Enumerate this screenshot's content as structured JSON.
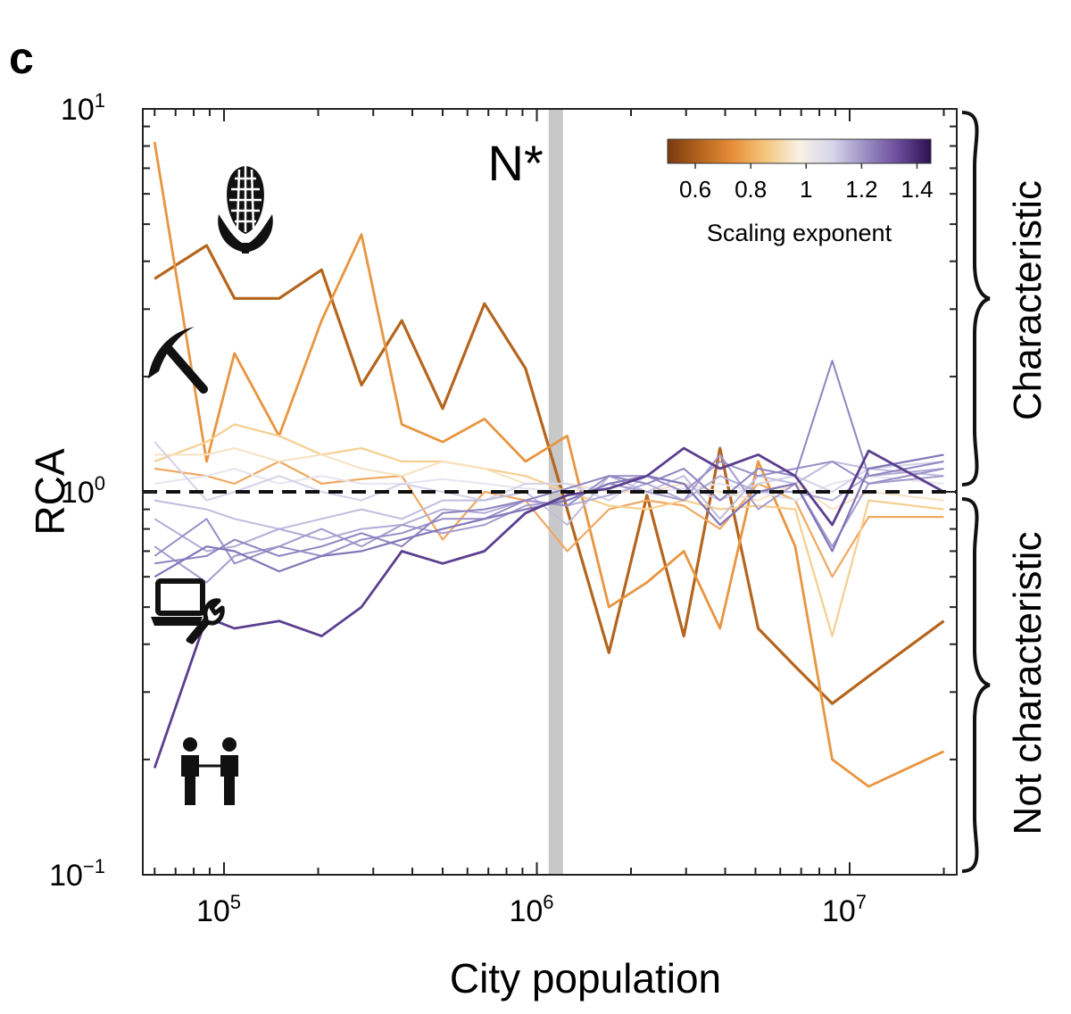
{
  "panel_label": "c",
  "chart_data": {
    "type": "line",
    "xlabel": "City population",
    "ylabel": "RCA",
    "xscale": "log",
    "yscale": "log",
    "xlim": [
      55000,
      22000000
    ],
    "ylim": [
      0.1,
      10
    ],
    "x_ticks": [
      {
        "value": 100000,
        "base": "10",
        "exp": "5"
      },
      {
        "value": 1000000,
        "base": "10",
        "exp": "6"
      },
      {
        "value": 10000000,
        "base": "10",
        "exp": "7"
      }
    ],
    "y_ticks": [
      {
        "value": 0.1,
        "base": "10",
        "exp": "−1"
      },
      {
        "value": 1,
        "base": "10",
        "exp": "0"
      },
      {
        "value": 10,
        "base": "10",
        "exp": "1"
      }
    ],
    "reference_line_y": 1,
    "threshold": {
      "label": "N*",
      "x": 1150000
    },
    "regions": {
      "upper": "Characteristic",
      "lower": "Not characteristic"
    },
    "colorbar": {
      "title": "Scaling exponent",
      "min": 0.5,
      "max": 1.45,
      "ticks": [
        "0.6",
        "0.8",
        "1",
        "1.2",
        "1.4"
      ],
      "tick_values": [
        0.6,
        0.8,
        1.0,
        1.2,
        1.4
      ],
      "colors": [
        "#7a3a10",
        "#b5651d",
        "#e8903a",
        "#f5c77e",
        "#f8f1e4",
        "#d6d6ea",
        "#9c8fc4",
        "#6a4c9c",
        "#2d0f50"
      ]
    },
    "icons": [
      "corn-icon",
      "pickaxe-icon",
      "laptop-wrench-icon",
      "people-icon"
    ],
    "x": [
      60000,
      88000,
      108000,
      150000,
      205000,
      275000,
      370000,
      500000,
      680000,
      920000,
      1250000,
      1700000,
      2250000,
      2950000,
      3850000,
      5100000,
      6700000,
      8800000,
      11500000,
      20000000
    ],
    "series": [
      {
        "exponent": 0.62,
        "color": "#b5651d",
        "width": 3.2,
        "values": [
          3.6,
          4.4,
          3.2,
          3.2,
          3.8,
          1.9,
          2.8,
          1.65,
          3.1,
          2.1,
          0.9,
          0.38,
          0.98,
          0.42,
          1.3,
          0.44,
          0.35,
          0.28,
          0.33,
          0.46
        ]
      },
      {
        "exponent": 0.78,
        "color": "#e8953f",
        "width": 2.8,
        "values": [
          8.2,
          1.2,
          2.3,
          1.4,
          2.8,
          4.7,
          1.5,
          1.35,
          1.55,
          1.2,
          1.4,
          0.5,
          0.58,
          0.7,
          0.44,
          1.2,
          0.72,
          0.2,
          0.17,
          0.21
        ]
      },
      {
        "exponent": 0.82,
        "color": "#f0a860",
        "width": 2.2,
        "values": [
          1.15,
          1.1,
          1.05,
          1.2,
          1.05,
          1.08,
          1.1,
          0.75,
          1.0,
          0.95,
          0.7,
          0.9,
          0.95,
          0.92,
          0.8,
          1.05,
          0.95,
          0.6,
          0.86,
          0.86
        ]
      },
      {
        "exponent": 0.88,
        "color": "#f6cf90",
        "width": 2.2,
        "values": [
          1.2,
          1.35,
          1.5,
          1.4,
          1.25,
          1.3,
          1.2,
          1.2,
          1.15,
          1.1,
          1.0,
          0.92,
          0.9,
          0.95,
          0.9,
          0.92,
          0.9,
          0.42,
          0.95,
          0.9
        ]
      },
      {
        "exponent": 0.95,
        "color": "#f6e2c2",
        "width": 2.0,
        "values": [
          1.25,
          1.25,
          1.3,
          1.2,
          1.25,
          1.15,
          1.1,
          1.2,
          1.15,
          1.05,
          1.05,
          1.0,
          1.0,
          1.05,
          1.0,
          0.95,
          1.05,
          0.9,
          1.0,
          0.95
        ]
      },
      {
        "exponent": 1.02,
        "color": "#e6e4f0",
        "width": 2.0,
        "values": [
          1.05,
          1.1,
          1.15,
          1.05,
          1.1,
          1.05,
          1.05,
          1.08,
          1.05,
          1.02,
          1.0,
          1.05,
          1.0,
          1.02,
          1.05,
          1.0,
          0.95,
          1.05,
          1.1,
          1.05
        ]
      },
      {
        "exponent": 1.08,
        "color": "#d4d2e8",
        "width": 2.0,
        "values": [
          1.35,
          0.95,
          1.0,
          1.1,
          1.0,
          0.95,
          1.05,
          1.0,
          0.95,
          1.05,
          1.05,
          0.95,
          1.1,
          1.05,
          0.95,
          1.05,
          1.1,
          1.0,
          1.15,
          1.2
        ]
      },
      {
        "exponent": 1.12,
        "color": "#c0bcde",
        "width": 2.0,
        "values": [
          0.95,
          0.9,
          0.85,
          0.8,
          0.85,
          0.9,
          0.85,
          0.95,
          0.95,
          1.0,
          0.82,
          1.1,
          1.0,
          1.1,
          0.85,
          1.1,
          1.05,
          1.2,
          1.15,
          1.1
        ]
      },
      {
        "exponent": 1.15,
        "color": "#b2acd6",
        "width": 2.0,
        "values": [
          0.85,
          0.7,
          0.72,
          0.8,
          0.75,
          0.8,
          0.82,
          0.9,
          0.88,
          0.95,
          0.92,
          0.98,
          1.05,
          0.95,
          1.1,
          1.0,
          1.0,
          0.95,
          1.1,
          1.15
        ]
      },
      {
        "exponent": 1.18,
        "color": "#a49cce",
        "width": 2.0,
        "values": [
          0.72,
          0.58,
          0.68,
          0.72,
          0.8,
          0.72,
          0.82,
          0.78,
          0.82,
          0.92,
          0.95,
          1.05,
          1.0,
          0.95,
          1.25,
          0.9,
          1.05,
          0.72,
          1.05,
          1.1
        ]
      },
      {
        "exponent": 1.22,
        "color": "#9a8fc8",
        "width": 2.0,
        "values": [
          0.68,
          0.85,
          0.65,
          0.72,
          0.68,
          0.75,
          0.78,
          0.85,
          0.85,
          0.95,
          0.92,
          1.1,
          1.1,
          1.0,
          1.2,
          1.1,
          1.15,
          1.2,
          1.05,
          1.15
        ]
      },
      {
        "exponent": 1.25,
        "color": "#8f84c0",
        "width": 2.0,
        "values": [
          0.65,
          0.68,
          0.75,
          0.68,
          0.72,
          0.78,
          0.72,
          0.88,
          0.9,
          0.95,
          1.02,
          1.1,
          1.05,
          1.15,
          0.95,
          1.15,
          1.1,
          2.2,
          1.1,
          1.2
        ]
      },
      {
        "exponent": 1.3,
        "color": "#8276b8",
        "width": 2.2,
        "values": [
          0.6,
          0.72,
          0.7,
          0.62,
          0.68,
          0.7,
          0.75,
          0.8,
          0.85,
          0.9,
          0.95,
          1.05,
          1.1,
          1.05,
          0.82,
          1.0,
          1.05,
          0.7,
          1.15,
          1.25
        ]
      },
      {
        "exponent": 1.42,
        "color": "#5b3f8f",
        "width": 2.8,
        "values": [
          0.19,
          0.47,
          0.44,
          0.46,
          0.42,
          0.5,
          0.7,
          0.65,
          0.7,
          0.88,
          0.98,
          1.02,
          1.1,
          1.3,
          1.15,
          1.25,
          1.1,
          0.82,
          1.28,
          1.0
        ]
      }
    ]
  }
}
